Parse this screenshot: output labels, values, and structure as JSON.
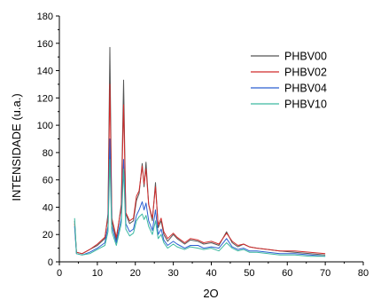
{
  "chart_data": {
    "type": "line",
    "xlabel": "2O",
    "ylabel": "INTENSIDADE (u.a.)",
    "xlim": [
      0,
      80
    ],
    "ylim": [
      0,
      180
    ],
    "x_ticks": [
      0,
      10,
      20,
      30,
      40,
      50,
      60,
      70,
      80
    ],
    "y_ticks": [
      0,
      20,
      40,
      60,
      80,
      100,
      120,
      140,
      160,
      180
    ],
    "x_tick_labels": [
      "0",
      "10",
      "20",
      "30",
      "40",
      "50",
      "60",
      "70",
      "80"
    ],
    "y_tick_labels": [
      "0",
      "20",
      "40",
      "60",
      "80",
      "100",
      "120",
      "140",
      "160",
      "180"
    ],
    "grid": false,
    "legend_position": "top-right",
    "series": [
      {
        "name": "PHBV00",
        "color": "#555555",
        "x": [
          4,
          4.5,
          6,
          8,
          10,
          12,
          12.8,
          13.3,
          13.8,
          15,
          16.3,
          16.9,
          17.5,
          18.5,
          19.5,
          20.3,
          21,
          21.8,
          22.3,
          22.8,
          23.5,
          24.5,
          25.3,
          26,
          26.8,
          27.5,
          28.5,
          30,
          31,
          33,
          34.5,
          36.5,
          38,
          40,
          42,
          44,
          45.5,
          47,
          48.5,
          50,
          52,
          55,
          58,
          62,
          66,
          70
        ],
        "y": [
          30,
          7,
          6,
          9,
          12,
          17,
          35,
          157,
          30,
          16,
          42,
          133,
          35,
          28,
          30,
          45,
          50,
          72,
          55,
          73,
          42,
          30,
          58,
          25,
          30,
          20,
          15,
          20,
          17,
          13,
          16,
          15,
          13,
          14,
          12,
          22,
          14,
          11,
          13,
          11,
          10,
          9,
          8,
          7,
          6,
          5
        ]
      },
      {
        "name": "PHBV02",
        "color": "#d12b2b",
        "x": [
          4,
          4.5,
          6,
          8,
          10,
          12,
          12.8,
          13.3,
          13.8,
          15,
          16.3,
          16.9,
          17.5,
          18.5,
          19.5,
          20.3,
          21,
          21.8,
          22.3,
          22.8,
          23.5,
          24.5,
          25.3,
          26,
          26.8,
          27.5,
          28.5,
          30,
          31,
          33,
          34.5,
          36.5,
          38,
          40,
          42,
          44,
          45.5,
          47,
          48.5,
          50,
          52,
          55,
          58,
          62,
          66,
          70
        ],
        "y": [
          28,
          7,
          6,
          9,
          13,
          18,
          33,
          130,
          32,
          18,
          40,
          115,
          36,
          30,
          32,
          48,
          52,
          70,
          57,
          68,
          42,
          32,
          55,
          27,
          32,
          22,
          17,
          21,
          18,
          14,
          17,
          16,
          14,
          15,
          13,
          21,
          15,
          12,
          13,
          11,
          10,
          9,
          8,
          8,
          7,
          6
        ]
      },
      {
        "name": "PHBV04",
        "color": "#2b5fd1",
        "x": [
          4,
          4.5,
          6,
          8,
          10,
          12,
          12.8,
          13.3,
          13.8,
          15,
          16.3,
          16.9,
          17.5,
          18.5,
          19.5,
          20.3,
          21,
          21.8,
          22.3,
          22.8,
          23.5,
          24.5,
          25.3,
          26,
          26.8,
          27.5,
          28.5,
          30,
          31,
          33,
          34.5,
          36.5,
          38,
          40,
          42,
          44,
          45.5,
          47,
          48.5,
          50,
          52,
          55,
          58,
          62,
          66,
          70
        ],
        "y": [
          26,
          6,
          5,
          7,
          10,
          14,
          26,
          90,
          26,
          14,
          32,
          75,
          28,
          22,
          24,
          34,
          38,
          44,
          38,
          43,
          30,
          23,
          38,
          20,
          24,
          16,
          12,
          15,
          13,
          10,
          12,
          12,
          10,
          11,
          10,
          17,
          11,
          9,
          10,
          8,
          8,
          7,
          6,
          6,
          5,
          4
        ]
      },
      {
        "name": "PHBV10",
        "color": "#3cb9a0",
        "x": [
          4,
          4.5,
          6,
          8,
          10,
          12,
          12.8,
          13.3,
          13.8,
          15,
          16.3,
          16.9,
          17.5,
          18.5,
          19.5,
          20.3,
          21,
          21.8,
          22.3,
          22.8,
          23.5,
          24.5,
          25.3,
          26,
          26.8,
          27.5,
          28.5,
          30,
          31,
          33,
          34.5,
          36.5,
          38,
          40,
          42,
          44,
          45.5,
          47,
          48.5,
          50,
          52,
          55,
          58,
          62,
          66,
          70
        ],
        "y": [
          32,
          6,
          5,
          6,
          9,
          12,
          22,
          75,
          22,
          12,
          28,
          68,
          24,
          19,
          21,
          30,
          33,
          35,
          31,
          34,
          26,
          20,
          30,
          17,
          20,
          14,
          10,
          13,
          11,
          9,
          11,
          10,
          9,
          10,
          8,
          14,
          10,
          8,
          9,
          7,
          7,
          6,
          5,
          5,
          4,
          4
        ]
      }
    ]
  }
}
